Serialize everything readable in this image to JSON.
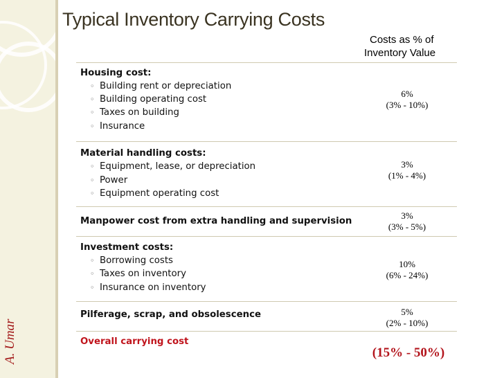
{
  "slide": {
    "title": "Typical Inventory Carrying Costs",
    "author": "A. Umar",
    "column_header": {
      "line1": "Costs as % of",
      "line2": "Inventory Value"
    }
  },
  "colors": {
    "title": "#3a3321",
    "author": "#a31c1c",
    "overall": "#c0141c",
    "sidebar": "#f4f2e0"
  },
  "rows": [
    {
      "category": "Housing cost:",
      "items": [
        "Building rent or depreciation",
        "Building operating cost",
        "Taxes on building",
        "Insurance"
      ],
      "value": "6%",
      "range": "(3% - 10%)"
    },
    {
      "category": "Material handling costs:",
      "items": [
        "Equipment, lease, or depreciation",
        "Power",
        "Equipment operating cost"
      ],
      "value": "3%",
      "range": "(1% - 4%)"
    },
    {
      "category": "Manpower cost from extra handling and supervision",
      "items": [],
      "value": "3%",
      "range": "(3% - 5%)"
    },
    {
      "category": "Investment costs:",
      "items": [
        "Borrowing costs",
        "Taxes on inventory",
        "Insurance on inventory"
      ],
      "value": "10%",
      "range": "(6% - 24%)"
    },
    {
      "category": "Pilferage, scrap, and obsolescence",
      "items": [],
      "value": "5%",
      "range": "(2% - 10%)"
    }
  ],
  "overall": {
    "label": "Overall carrying cost",
    "value": "(15% - 50%)"
  }
}
